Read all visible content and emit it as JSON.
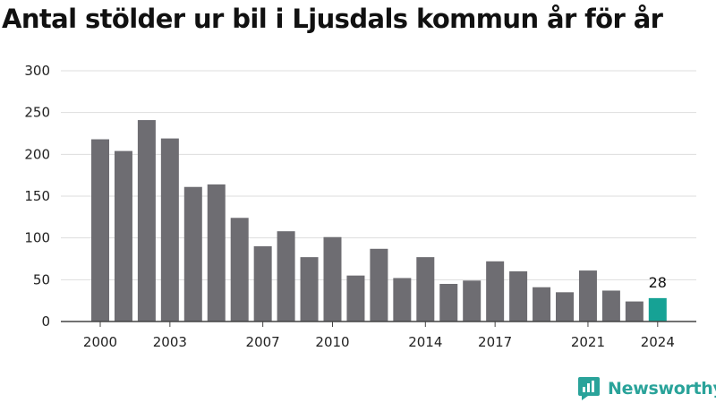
{
  "title": "Antal stölder ur bil i Ljusdals kommun år för år",
  "brand": {
    "name": "Newsworthy",
    "icon": "newsworthy-logo-icon",
    "color": "#2aa39a"
  },
  "chart_data": {
    "type": "bar",
    "title": "Antal stölder ur bil i Ljusdals kommun år för år",
    "xlabel": "",
    "ylabel": "",
    "ylim": [
      0,
      300
    ],
    "yticks": [
      0,
      50,
      100,
      150,
      200,
      250,
      300
    ],
    "xticks": [
      2000,
      2003,
      2007,
      2010,
      2014,
      2017,
      2021,
      2024
    ],
    "grid": true,
    "categories": [
      2000,
      2001,
      2002,
      2003,
      2004,
      2005,
      2006,
      2007,
      2008,
      2009,
      2010,
      2011,
      2012,
      2013,
      2014,
      2015,
      2016,
      2017,
      2018,
      2019,
      2020,
      2021,
      2022,
      2023,
      2024
    ],
    "values": [
      218,
      204,
      241,
      219,
      161,
      164,
      124,
      90,
      108,
      77,
      101,
      55,
      87,
      52,
      77,
      45,
      49,
      72,
      60,
      41,
      35,
      61,
      37,
      24,
      28
    ],
    "colors": {
      "bar": "#6e6d72",
      "highlight": "#16a295",
      "grid": "#dddddd",
      "axis": "#444444"
    },
    "highlight_category": 2024,
    "data_labels": [
      {
        "category": 2024,
        "text": "28"
      }
    ]
  }
}
